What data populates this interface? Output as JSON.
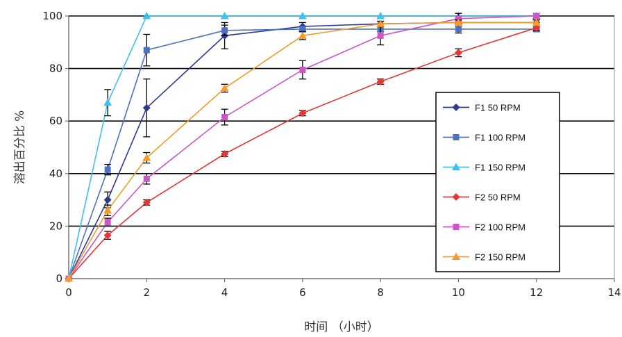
{
  "chart_data": {
    "type": "line",
    "xlabel": "时间 （小时）",
    "ylabel": "溶出百分比 %",
    "xlim": [
      0,
      14
    ],
    "ylim": [
      0,
      100
    ],
    "x_ticks": [
      0,
      2,
      4,
      6,
      8,
      10,
      12,
      14
    ],
    "y_ticks": [
      0,
      20,
      40,
      60,
      80,
      100
    ],
    "grid": "horizontal",
    "legend_position": "right",
    "series": [
      {
        "name": "F1 50 RPM",
        "color": "#2b3a8f",
        "marker": "diamond",
        "x": [
          0,
          1,
          2,
          4,
          6,
          8,
          10,
          12
        ],
        "y": [
          0,
          30,
          65,
          92.5,
          96,
          97,
          97.5,
          97.5
        ],
        "err": [
          0,
          3,
          11,
          5,
          1.5,
          1,
          1.5,
          1
        ]
      },
      {
        "name": "F1 100 RPM",
        "color": "#4f6fc0",
        "marker": "square",
        "x": [
          0,
          1,
          2,
          4,
          6,
          8,
          10,
          12
        ],
        "y": [
          0,
          41.5,
          87,
          94.5,
          95,
          95,
          95,
          95
        ],
        "err": [
          0,
          2,
          6,
          2,
          1,
          1,
          1.5,
          1
        ]
      },
      {
        "name": "F1 150 RPM",
        "color": "#3fc1ee",
        "marker": "triangle",
        "x": [
          0,
          1,
          2,
          4,
          6,
          8,
          10,
          12
        ],
        "y": [
          0,
          67,
          100,
          100,
          100,
          100,
          100,
          100
        ],
        "err": [
          0,
          5,
          0,
          0,
          0,
          0,
          0,
          0
        ]
      },
      {
        "name": "F2 50 RPM",
        "color": "#e63535",
        "marker": "diamond",
        "x": [
          0,
          1,
          2,
          4,
          6,
          8,
          10,
          12
        ],
        "y": [
          0,
          16.5,
          29,
          47.5,
          63,
          75,
          86,
          95.5
        ],
        "err": [
          0,
          1.5,
          1,
          1,
          1,
          1,
          1.5,
          1
        ]
      },
      {
        "name": "F2 100 RPM",
        "color": "#cc55c8",
        "marker": "square",
        "x": [
          0,
          1,
          2,
          4,
          6,
          8,
          10,
          12
        ],
        "y": [
          0,
          21.5,
          38,
          61.5,
          79.5,
          92.5,
          99,
          100
        ],
        "err": [
          0,
          1.5,
          2,
          3,
          3.5,
          3.5,
          2,
          1
        ]
      },
      {
        "name": "F2 150 RPM",
        "color": "#f39c2a",
        "marker": "triangle",
        "x": [
          0,
          1,
          2,
          4,
          6,
          8,
          10,
          12
        ],
        "y": [
          0,
          26,
          46,
          72.5,
          92.5,
          97,
          97.5,
          97.5
        ],
        "err": [
          0,
          2,
          2,
          1.5,
          1.5,
          1,
          1,
          1
        ]
      }
    ]
  }
}
